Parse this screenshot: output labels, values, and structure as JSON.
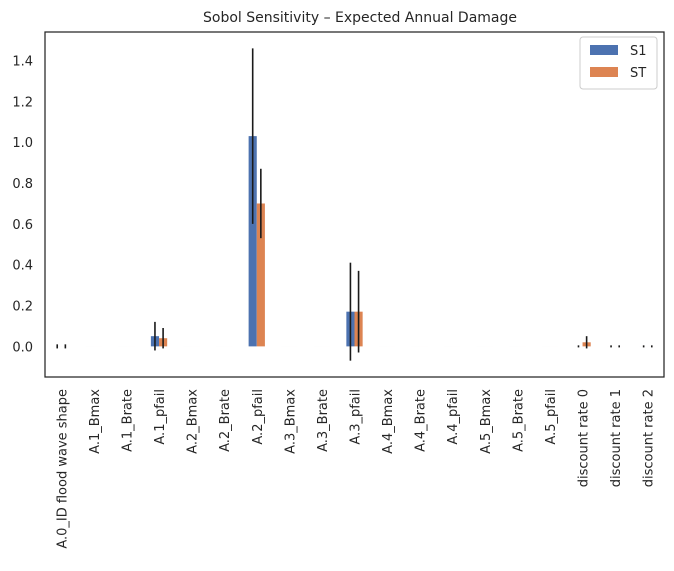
{
  "chart_data": {
    "type": "bar",
    "title": "Sobol Sensitivity – Expected Annual Damage",
    "xlabel": "",
    "ylabel": "",
    "categories": [
      "A.0_ID flood wave shape",
      "A.1_Bmax",
      "A.1_Brate",
      "A.1_pfail",
      "A.2_Bmax",
      "A.2_Brate",
      "A.2_pfail",
      "A.3_Bmax",
      "A.3_Brate",
      "A.3_pfail",
      "A.4_Bmax",
      "A.4_Brate",
      "A.4_pfail",
      "A.5_Bmax",
      "A.5_Brate",
      "A.5_pfail",
      "discount rate 0",
      "discount rate 1",
      "discount rate 2"
    ],
    "series": [
      {
        "name": "S1",
        "color": "#4c72b0",
        "values": [
          0,
          0,
          0,
          0.05,
          0,
          0,
          1.03,
          0,
          0,
          0.17,
          0,
          0,
          0,
          0,
          0,
          0,
          0,
          0,
          0
        ],
        "errors": [
          0.01,
          0,
          0,
          0.07,
          0,
          0,
          0.43,
          0,
          0,
          0.24,
          0,
          0,
          0,
          0,
          0,
          0,
          0.005,
          0.005,
          0.005
        ]
      },
      {
        "name": "ST",
        "color": "#dd8452",
        "values": [
          0,
          0,
          0,
          0.04,
          0,
          0,
          0.7,
          0,
          0,
          0.17,
          0,
          0,
          0,
          0,
          0,
          0,
          0.02,
          0,
          0
        ],
        "errors": [
          0.01,
          0,
          0,
          0.05,
          0,
          0,
          0.17,
          0,
          0,
          0.2,
          0,
          0,
          0,
          0,
          0,
          0,
          0.03,
          0.005,
          0.005
        ]
      }
    ],
    "ylim": [
      -0.15,
      1.54
    ],
    "yticks": [
      0.0,
      0.2,
      0.4,
      0.6,
      0.8,
      1.0,
      1.2,
      1.4
    ],
    "grid": false,
    "legend_position": "top-right"
  }
}
